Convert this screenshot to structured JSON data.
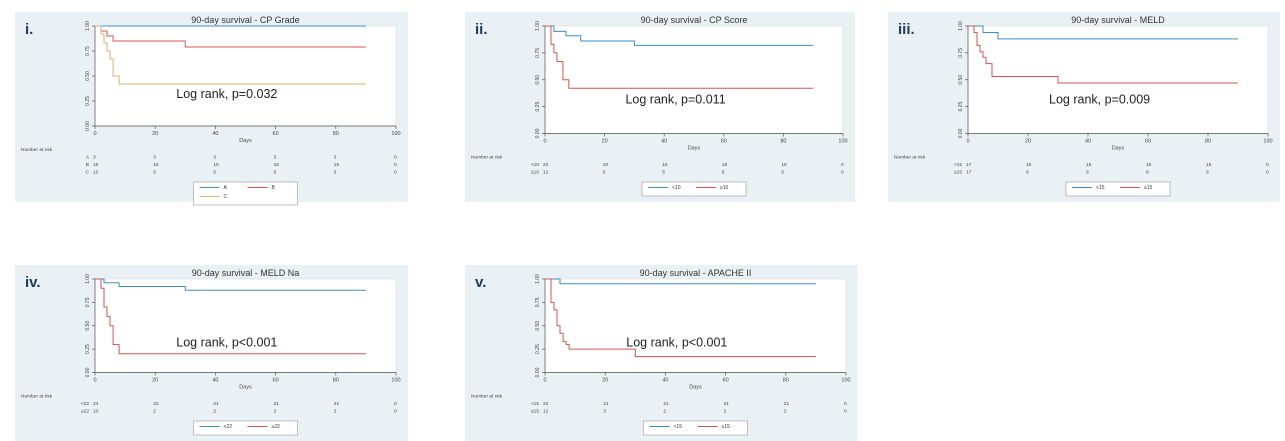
{
  "chart_data": [
    {
      "type": "line",
      "panel_label": "i.",
      "title": "90-day survival - CP Grade",
      "annotation": "Log rank, p=0.032",
      "xlabel": "Days",
      "xlim": [
        0,
        100
      ],
      "ylim": [
        0,
        1
      ],
      "xticks": [
        "0",
        "20",
        "40",
        "60",
        "80",
        "100"
      ],
      "yticks": [
        "0.00",
        "0.25",
        "0.50",
        "0.75",
        "1.00"
      ],
      "risk_title": "Number at risk",
      "risk_x": [
        0,
        20,
        40,
        60,
        80,
        100
      ],
      "legend_cols": 2,
      "colors": [
        "#3a8fc9",
        "#d9534f",
        "#d9b26b"
      ],
      "series": [
        {
          "name": "A",
          "risk_label": "A",
          "at_risk": [
            "3",
            "3",
            "3",
            "3",
            "3",
            "0"
          ],
          "x": [
            0,
            90
          ],
          "y": [
            1.0,
            1.0
          ]
        },
        {
          "name": "B",
          "risk_label": "B",
          "at_risk": [
            "19",
            "16",
            "15",
            "15",
            "15",
            "0"
          ],
          "x": [
            0,
            2,
            4,
            6,
            30,
            90
          ],
          "y": [
            1.0,
            0.95,
            0.9,
            0.85,
            0.79,
            0.79
          ]
        },
        {
          "name": "C",
          "risk_label": "C",
          "at_risk": [
            "12",
            "5",
            "5",
            "5",
            "5",
            "0"
          ],
          "x": [
            0,
            2,
            3,
            4,
            5,
            6,
            8,
            90
          ],
          "y": [
            1.0,
            0.92,
            0.83,
            0.75,
            0.67,
            0.5,
            0.42,
            0.42
          ]
        }
      ]
    },
    {
      "type": "line",
      "panel_label": "ii.",
      "title": "90-day survival - CP Score",
      "annotation": "Log rank, p=0.011",
      "xlabel": "Days",
      "xlim": [
        0,
        100
      ],
      "ylim": [
        0,
        1
      ],
      "xticks": [
        "0",
        "20",
        "40",
        "60",
        "80",
        "100"
      ],
      "yticks": [
        "0.00",
        "0.25",
        "0.50",
        "0.75",
        "1.00"
      ],
      "risk_title": "Number at risk",
      "risk_x": [
        0,
        20,
        40,
        60,
        80,
        100
      ],
      "legend_cols": 2,
      "colors": [
        "#3a8fc9",
        "#d9534f"
      ],
      "series": [
        {
          "name": "<10",
          "risk_label": "<10",
          "at_risk": [
            "22",
            "19",
            "18",
            "18",
            "18",
            "0"
          ],
          "x": [
            0,
            3,
            7,
            12,
            30,
            90
          ],
          "y": [
            1.0,
            0.95,
            0.91,
            0.86,
            0.82,
            0.82
          ]
        },
        {
          "name": "≥10",
          "risk_label": "≥10",
          "at_risk": [
            "12",
            "5",
            "5",
            "5",
            "5",
            "0"
          ],
          "x": [
            0,
            2,
            3,
            4,
            6,
            8,
            90
          ],
          "y": [
            1.0,
            0.83,
            0.75,
            0.67,
            0.5,
            0.42,
            0.42
          ]
        }
      ]
    },
    {
      "type": "line",
      "panel_label": "iii.",
      "title": "90-day survival - MELD",
      "annotation": "Log rank, p=0.009",
      "xlabel": "Days",
      "xlim": [
        0,
        100
      ],
      "ylim": [
        0,
        1
      ],
      "xticks": [
        "0",
        "20",
        "40",
        "60",
        "80",
        "100"
      ],
      "yticks": [
        "0.00",
        "0.25",
        "0.50",
        "0.75",
        "1.00"
      ],
      "risk_title": "Number at risk",
      "risk_x": [
        0,
        20,
        40,
        60,
        80,
        100
      ],
      "legend_cols": 2,
      "colors": [
        "#3a8fc9",
        "#d9534f"
      ],
      "series": [
        {
          "name": "<15",
          "risk_label": "<15",
          "at_risk": [
            "17",
            "15",
            "15",
            "15",
            "15",
            "0"
          ],
          "x": [
            0,
            5,
            10,
            90
          ],
          "y": [
            1.0,
            0.94,
            0.88,
            0.88
          ]
        },
        {
          "name": "≥15",
          "risk_label": "≥15",
          "at_risk": [
            "17",
            "9",
            "8",
            "8",
            "8",
            "0"
          ],
          "x": [
            0,
            2,
            3,
            4,
            5,
            6,
            8,
            30,
            90
          ],
          "y": [
            1.0,
            0.94,
            0.82,
            0.76,
            0.71,
            0.65,
            0.53,
            0.47,
            0.47
          ]
        }
      ]
    },
    {
      "type": "line",
      "panel_label": "iv.",
      "title": "90-day survival - MELD Na",
      "annotation": "Log rank, p<0.001",
      "xlabel": "Days",
      "xlim": [
        0,
        100
      ],
      "ylim": [
        0,
        1
      ],
      "xticks": [
        "0",
        "20",
        "40",
        "60",
        "80",
        "100"
      ],
      "yticks": [
        "0.00",
        "0.25",
        "0.50",
        "0.75",
        "1.00"
      ],
      "risk_title": "Number at risk",
      "risk_x": [
        0,
        20,
        40,
        60,
        80,
        100
      ],
      "legend_cols": 2,
      "colors": [
        "#3a8fc9",
        "#d9534f"
      ],
      "series": [
        {
          "name": "<22",
          "risk_label": "<22",
          "at_risk": [
            "24",
            "22",
            "21",
            "21",
            "21",
            "0"
          ],
          "x": [
            0,
            3,
            8,
            30,
            90
          ],
          "y": [
            1.0,
            0.96,
            0.92,
            0.88,
            0.88
          ]
        },
        {
          "name": "≥22",
          "risk_label": "≥22",
          "at_risk": [
            "10",
            "2",
            "2",
            "2",
            "2",
            "0"
          ],
          "x": [
            0,
            2,
            3,
            4,
            5,
            6,
            8,
            90
          ],
          "y": [
            1.0,
            0.9,
            0.7,
            0.6,
            0.5,
            0.3,
            0.2,
            0.2
          ]
        }
      ]
    },
    {
      "type": "line",
      "panel_label": "v.",
      "title": "90-day survival - APACHE II",
      "annotation": "Log rank, p<0.001",
      "xlabel": "Days",
      "xlim": [
        0,
        100
      ],
      "ylim": [
        0,
        1
      ],
      "xticks": [
        "0",
        "20",
        "40",
        "60",
        "80",
        "100"
      ],
      "yticks": [
        "0.00",
        "0.25",
        "0.50",
        "0.75",
        "1.00"
      ],
      "risk_title": "Number at risk",
      "risk_x": [
        0,
        20,
        40,
        60,
        80,
        100
      ],
      "legend_cols": 2,
      "colors": [
        "#3a8fc9",
        "#d9534f"
      ],
      "series": [
        {
          "name": "<15",
          "risk_label": "<15",
          "at_risk": [
            "22",
            "21",
            "21",
            "21",
            "21",
            "0"
          ],
          "x": [
            0,
            5,
            90
          ],
          "y": [
            1.0,
            0.95,
            0.95
          ]
        },
        {
          "name": "≥15",
          "risk_label": "≥15",
          "at_risk": [
            "12",
            "3",
            "2",
            "2",
            "2",
            "0"
          ],
          "x": [
            0,
            2,
            3,
            4,
            5,
            6,
            7,
            8,
            30,
            90
          ],
          "y": [
            1.0,
            0.75,
            0.67,
            0.5,
            0.42,
            0.33,
            0.3,
            0.25,
            0.17,
            0.17
          ]
        }
      ]
    }
  ]
}
